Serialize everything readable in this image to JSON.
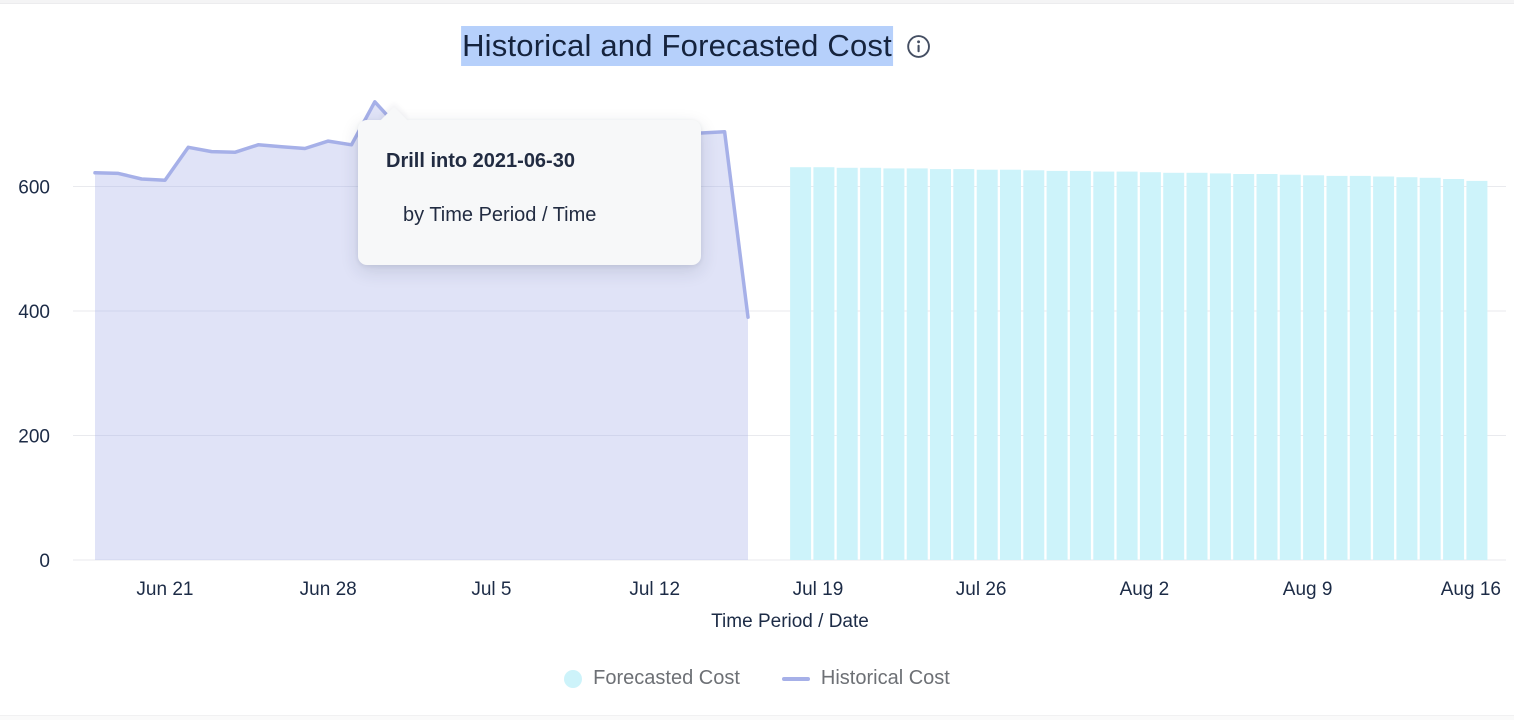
{
  "app": {
    "title": "Historical and Forecasted Cost",
    "title_selection_color": "#b6d0fb",
    "info_icon": "info-circle-icon"
  },
  "tooltip": {
    "title": "Drill into 2021-06-30",
    "subtitle": "by Time Period / Time"
  },
  "legend": {
    "items": [
      {
        "label": "Forecasted Cost",
        "marker": "circle",
        "color": "#cdf3fa"
      },
      {
        "label": "Historical Cost",
        "marker": "line",
        "color": "#a6b0e8"
      }
    ]
  },
  "chart_data": {
    "type": "combo",
    "title": "Historical and Forecasted Cost",
    "xlabel": "Time Period / Date",
    "ylabel": "",
    "ylim": [
      0,
      760
    ],
    "y_ticks": [
      0,
      200,
      400,
      600
    ],
    "grid": true,
    "grid_color": "#e9eaee",
    "axis_text_color": "#1c2b46",
    "legend_position": "bottom",
    "x_ticks": [
      {
        "date": "2021-06-21",
        "label": "Jun 21"
      },
      {
        "date": "2021-06-28",
        "label": "Jun 28"
      },
      {
        "date": "2021-07-05",
        "label": "Jul 5"
      },
      {
        "date": "2021-07-12",
        "label": "Jul 12"
      },
      {
        "date": "2021-07-19",
        "label": "Jul 19"
      },
      {
        "date": "2021-07-26",
        "label": "Jul 26"
      },
      {
        "date": "2021-08-02",
        "label": "Aug 2"
      },
      {
        "date": "2021-08-09",
        "label": "Aug 9"
      },
      {
        "date": "2021-08-16",
        "label": "Aug 16"
      }
    ],
    "series": [
      {
        "name": "Historical Cost",
        "type": "line",
        "area": true,
        "color": "#a6b0e8",
        "fill": "rgba(166,176,232,0.35)",
        "dates": [
          "2021-06-18",
          "2021-06-19",
          "2021-06-20",
          "2021-06-21",
          "2021-06-22",
          "2021-06-23",
          "2021-06-24",
          "2021-06-25",
          "2021-06-26",
          "2021-06-27",
          "2021-06-28",
          "2021-06-29",
          "2021-06-30",
          "2021-07-01",
          "2021-07-02",
          "2021-07-03",
          "2021-07-04",
          "2021-07-05",
          "2021-07-06",
          "2021-07-07",
          "2021-07-08",
          "2021-07-09",
          "2021-07-10",
          "2021-07-11",
          "2021-07-12",
          "2021-07-13",
          "2021-07-14",
          "2021-07-15",
          "2021-07-16"
        ],
        "values": [
          622,
          621,
          612,
          610,
          663,
          656,
          655,
          667,
          664,
          661,
          673,
          667,
          736,
          695,
          689,
          691,
          687,
          689,
          691,
          687,
          689,
          686,
          688,
          685,
          687,
          688,
          686,
          688,
          390
        ]
      },
      {
        "name": "Forecasted Cost",
        "type": "bar",
        "color": "#cdf3fa",
        "dates": [
          "2021-07-18",
          "2021-07-19",
          "2021-07-20",
          "2021-07-21",
          "2021-07-22",
          "2021-07-23",
          "2021-07-24",
          "2021-07-25",
          "2021-07-26",
          "2021-07-27",
          "2021-07-28",
          "2021-07-29",
          "2021-07-30",
          "2021-07-31",
          "2021-08-01",
          "2021-08-02",
          "2021-08-03",
          "2021-08-04",
          "2021-08-05",
          "2021-08-06",
          "2021-08-07",
          "2021-08-08",
          "2021-08-09",
          "2021-08-10",
          "2021-08-11",
          "2021-08-12",
          "2021-08-13",
          "2021-08-14",
          "2021-08-15",
          "2021-08-16"
        ],
        "values": [
          631,
          631,
          630,
          630,
          629,
          629,
          628,
          628,
          627,
          627,
          626,
          625,
          625,
          624,
          624,
          623,
          622,
          622,
          621,
          620,
          620,
          619,
          618,
          617,
          617,
          616,
          615,
          614,
          612,
          609
        ]
      }
    ]
  }
}
